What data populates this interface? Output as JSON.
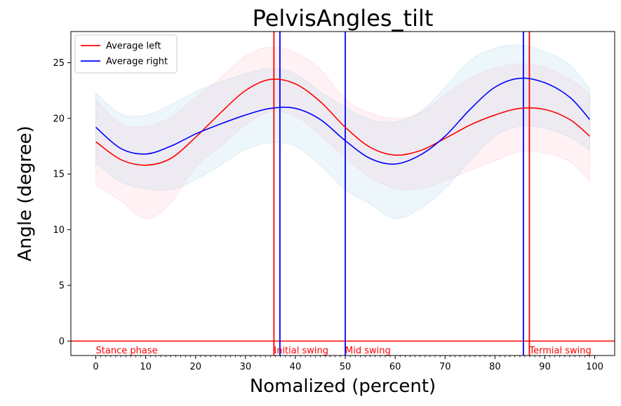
{
  "chart_data": {
    "type": "line",
    "title": "PelvisAngles_tilt",
    "xlabel": "Nomalized (percent)",
    "ylabel": "Angle (degree)",
    "xlim": [
      -5,
      104
    ],
    "ylim": [
      -1.3,
      27.8
    ],
    "xticks": [
      0,
      10,
      20,
      30,
      40,
      50,
      60,
      70,
      80,
      90,
      100
    ],
    "yticks": [
      0,
      5,
      10,
      15,
      20,
      25
    ],
    "minor_xtick_step": 1,
    "grid": false,
    "legend_position": "top-left",
    "series": [
      {
        "name": "Average left",
        "color": "#ff0000",
        "band_color": "#ffc0cb",
        "x": [
          0,
          5,
          10,
          15,
          20,
          25,
          30,
          35,
          40,
          45,
          50,
          55,
          60,
          65,
          70,
          75,
          80,
          85,
          90,
          95,
          99
        ],
        "values": [
          17.9,
          16.3,
          15.8,
          16.4,
          18.3,
          20.5,
          22.5,
          23.5,
          23.1,
          21.5,
          19.2,
          17.4,
          16.7,
          17.1,
          18.2,
          19.4,
          20.3,
          20.9,
          20.8,
          19.9,
          18.4
        ],
        "upper": [
          21.7,
          19.5,
          19.3,
          20.1,
          21.9,
          23.6,
          25.6,
          26.4,
          25.9,
          24.4,
          21.7,
          20.5,
          20.0,
          20.5,
          22.1,
          23.6,
          24.5,
          24.9,
          24.6,
          23.5,
          22.2
        ],
        "lower": [
          14.0,
          12.6,
          11.0,
          12.4,
          15.6,
          17.5,
          19.4,
          20.6,
          20.2,
          18.5,
          16.5,
          14.7,
          13.7,
          13.7,
          14.4,
          15.3,
          16.2,
          17.0,
          16.9,
          16.1,
          14.4
        ]
      },
      {
        "name": "Average right",
        "color": "#0000ff",
        "band_color": "#add8e6",
        "x": [
          0,
          5,
          10,
          15,
          20,
          25,
          30,
          35,
          40,
          45,
          50,
          55,
          60,
          65,
          70,
          75,
          80,
          85,
          90,
          95,
          99
        ],
        "values": [
          19.2,
          17.3,
          16.8,
          17.5,
          18.6,
          19.5,
          20.3,
          20.9,
          20.9,
          19.9,
          18.0,
          16.4,
          15.9,
          16.7,
          18.4,
          20.8,
          22.8,
          23.6,
          23.2,
          21.9,
          19.9
        ],
        "upper": [
          22.3,
          20.4,
          20.3,
          21.2,
          22.4,
          23.3,
          24.0,
          24.5,
          24.0,
          22.4,
          21.0,
          19.9,
          19.7,
          20.6,
          22.8,
          25.2,
          26.3,
          26.6,
          26.0,
          24.8,
          22.7
        ],
        "lower": [
          16.0,
          14.3,
          13.7,
          13.6,
          14.5,
          15.8,
          17.2,
          17.8,
          17.5,
          15.8,
          13.6,
          12.3,
          11.0,
          11.9,
          13.7,
          16.2,
          18.4,
          19.3,
          19.1,
          18.3,
          17.2
        ]
      }
    ],
    "vertical_lines": [
      {
        "x": 35.7,
        "color": "#ff0000"
      },
      {
        "x": 36.9,
        "color": "#0000ff"
      },
      {
        "x": 50.0,
        "color": "#0000ff"
      },
      {
        "x": 85.7,
        "color": "#0000ff"
      },
      {
        "x": 86.9,
        "color": "#ff0000"
      }
    ],
    "horizontal_lines": [
      {
        "y": 0,
        "color": "#ff0000"
      }
    ],
    "annotations": [
      {
        "text": "Stance phase",
        "x": 0,
        "y": -0.8,
        "color": "#ff0000"
      },
      {
        "text": "Initial swing",
        "x": 35.7,
        "y": -0.8,
        "color": "#ff0000"
      },
      {
        "text": "Mid swing",
        "x": 50.0,
        "y": -0.8,
        "color": "#ff0000"
      },
      {
        "text": "Termial swing",
        "x": 86.9,
        "y": -0.8,
        "color": "#ff0000"
      }
    ]
  }
}
